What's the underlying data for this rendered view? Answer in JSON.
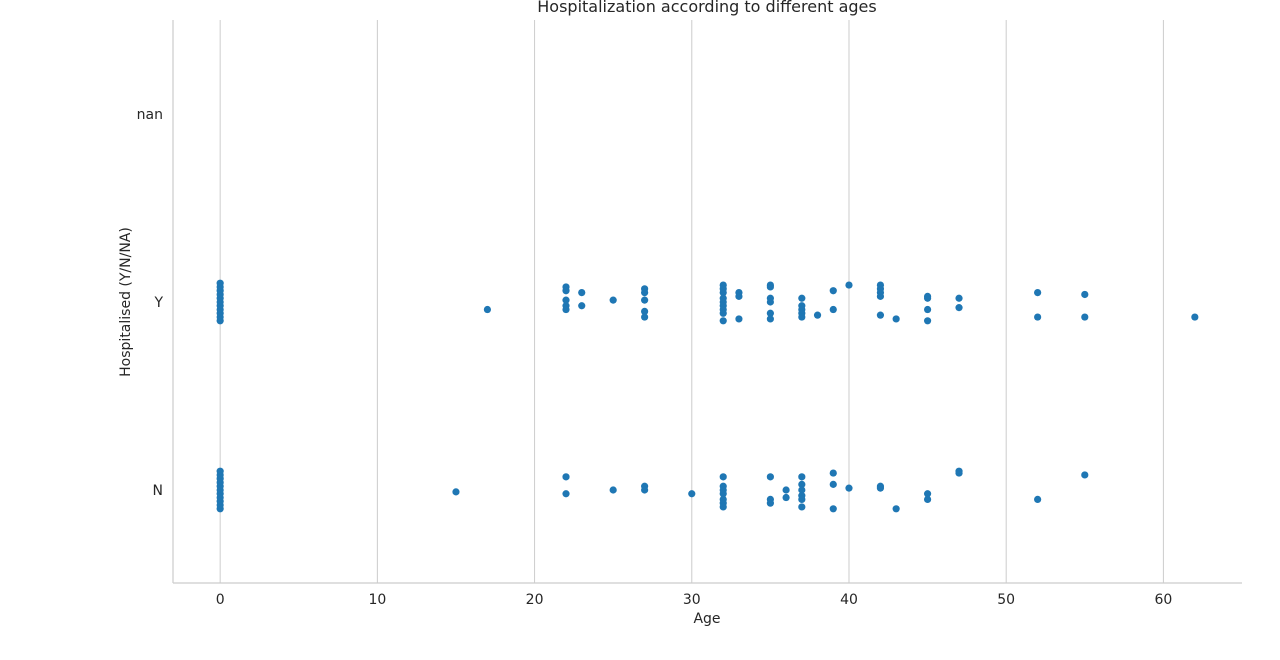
{
  "chart_data": {
    "type": "scatter",
    "title": "Hospitalization according to different ages",
    "xlabel": "Age",
    "ylabel": "Hospitalised (Y/N/NA)",
    "xlim": [
      -3,
      65
    ],
    "xticks": [
      0,
      10,
      20,
      30,
      40,
      50,
      60
    ],
    "categories": [
      "nan",
      "Y",
      "N"
    ],
    "grid": "vertical",
    "marker_color": "#1f77b4",
    "series": [
      {
        "category": "Y",
        "points": [
          {
            "x": 0,
            "jitter": -0.1
          },
          {
            "x": 0,
            "jitter": -0.08
          },
          {
            "x": 0,
            "jitter": -0.06
          },
          {
            "x": 0,
            "jitter": -0.04
          },
          {
            "x": 0,
            "jitter": -0.02
          },
          {
            "x": 0,
            "jitter": 0.0
          },
          {
            "x": 0,
            "jitter": 0.02
          },
          {
            "x": 0,
            "jitter": 0.04
          },
          {
            "x": 0,
            "jitter": 0.06
          },
          {
            "x": 0,
            "jitter": 0.08
          },
          {
            "x": 0,
            "jitter": 0.1
          },
          {
            "x": 17,
            "jitter": -0.04
          },
          {
            "x": 22,
            "jitter": 0.08
          },
          {
            "x": 22,
            "jitter": 0.06
          },
          {
            "x": 22,
            "jitter": 0.01
          },
          {
            "x": 22,
            "jitter": -0.02
          },
          {
            "x": 22,
            "jitter": -0.04
          },
          {
            "x": 23,
            "jitter": 0.05
          },
          {
            "x": 23,
            "jitter": -0.02
          },
          {
            "x": 25,
            "jitter": 0.01
          },
          {
            "x": 27,
            "jitter": 0.07
          },
          {
            "x": 27,
            "jitter": 0.05
          },
          {
            "x": 27,
            "jitter": 0.01
          },
          {
            "x": 27,
            "jitter": -0.05
          },
          {
            "x": 27,
            "jitter": -0.08
          },
          {
            "x": 32,
            "jitter": 0.09
          },
          {
            "x": 32,
            "jitter": 0.07
          },
          {
            "x": 32,
            "jitter": 0.05
          },
          {
            "x": 32,
            "jitter": 0.02
          },
          {
            "x": 32,
            "jitter": 0.0
          },
          {
            "x": 32,
            "jitter": -0.02
          },
          {
            "x": 32,
            "jitter": -0.04
          },
          {
            "x": 32,
            "jitter": -0.06
          },
          {
            "x": 32,
            "jitter": -0.1
          },
          {
            "x": 33,
            "jitter": 0.05
          },
          {
            "x": 33,
            "jitter": 0.03
          },
          {
            "x": 33,
            "jitter": -0.09
          },
          {
            "x": 35,
            "jitter": 0.09
          },
          {
            "x": 35,
            "jitter": 0.08
          },
          {
            "x": 35,
            "jitter": 0.02
          },
          {
            "x": 35,
            "jitter": 0.0
          },
          {
            "x": 35,
            "jitter": -0.06
          },
          {
            "x": 35,
            "jitter": -0.09
          },
          {
            "x": 37,
            "jitter": 0.02
          },
          {
            "x": 37,
            "jitter": -0.02
          },
          {
            "x": 37,
            "jitter": -0.04
          },
          {
            "x": 37,
            "jitter": -0.06
          },
          {
            "x": 37,
            "jitter": -0.08
          },
          {
            "x": 38,
            "jitter": -0.07
          },
          {
            "x": 39,
            "jitter": 0.06
          },
          {
            "x": 39,
            "jitter": -0.04
          },
          {
            "x": 40,
            "jitter": 0.09
          },
          {
            "x": 42,
            "jitter": 0.09
          },
          {
            "x": 42,
            "jitter": 0.07
          },
          {
            "x": 42,
            "jitter": 0.05
          },
          {
            "x": 42,
            "jitter": 0.03
          },
          {
            "x": 42,
            "jitter": -0.07
          },
          {
            "x": 43,
            "jitter": -0.09
          },
          {
            "x": 45,
            "jitter": 0.03
          },
          {
            "x": 45,
            "jitter": 0.02
          },
          {
            "x": 45,
            "jitter": -0.04
          },
          {
            "x": 45,
            "jitter": -0.1
          },
          {
            "x": 47,
            "jitter": 0.02
          },
          {
            "x": 47,
            "jitter": -0.03
          },
          {
            "x": 52,
            "jitter": 0.05
          },
          {
            "x": 52,
            "jitter": -0.08
          },
          {
            "x": 55,
            "jitter": 0.04
          },
          {
            "x": 55,
            "jitter": -0.08
          },
          {
            "x": 62,
            "jitter": -0.08
          }
        ]
      },
      {
        "category": "N",
        "points": [
          {
            "x": 0,
            "jitter": -0.1
          },
          {
            "x": 0,
            "jitter": -0.08
          },
          {
            "x": 0,
            "jitter": -0.06
          },
          {
            "x": 0,
            "jitter": -0.04
          },
          {
            "x": 0,
            "jitter": -0.02
          },
          {
            "x": 0,
            "jitter": 0.0
          },
          {
            "x": 0,
            "jitter": 0.02
          },
          {
            "x": 0,
            "jitter": 0.04
          },
          {
            "x": 0,
            "jitter": 0.06
          },
          {
            "x": 0,
            "jitter": 0.08
          },
          {
            "x": 0,
            "jitter": 0.1
          },
          {
            "x": 15,
            "jitter": -0.01
          },
          {
            "x": 22,
            "jitter": 0.07
          },
          {
            "x": 22,
            "jitter": -0.02
          },
          {
            "x": 25,
            "jitter": 0.0
          },
          {
            "x": 27,
            "jitter": 0.02
          },
          {
            "x": 27,
            "jitter": 0.0
          },
          {
            "x": 30,
            "jitter": -0.02
          },
          {
            "x": 32,
            "jitter": 0.07
          },
          {
            "x": 32,
            "jitter": 0.02
          },
          {
            "x": 32,
            "jitter": 0.0
          },
          {
            "x": 32,
            "jitter": -0.02
          },
          {
            "x": 32,
            "jitter": -0.05
          },
          {
            "x": 32,
            "jitter": -0.07
          },
          {
            "x": 32,
            "jitter": -0.09
          },
          {
            "x": 35,
            "jitter": 0.07
          },
          {
            "x": 35,
            "jitter": -0.05
          },
          {
            "x": 35,
            "jitter": -0.07
          },
          {
            "x": 36,
            "jitter": 0.0
          },
          {
            "x": 36,
            "jitter": -0.04
          },
          {
            "x": 37,
            "jitter": 0.07
          },
          {
            "x": 37,
            "jitter": 0.03
          },
          {
            "x": 37,
            "jitter": 0.0
          },
          {
            "x": 37,
            "jitter": -0.03
          },
          {
            "x": 37,
            "jitter": -0.05
          },
          {
            "x": 37,
            "jitter": -0.09
          },
          {
            "x": 39,
            "jitter": 0.09
          },
          {
            "x": 39,
            "jitter": 0.03
          },
          {
            "x": 39,
            "jitter": -0.1
          },
          {
            "x": 40,
            "jitter": 0.01
          },
          {
            "x": 42,
            "jitter": 0.02
          },
          {
            "x": 42,
            "jitter": 0.01
          },
          {
            "x": 43,
            "jitter": -0.1
          },
          {
            "x": 45,
            "jitter": -0.02
          },
          {
            "x": 45,
            "jitter": -0.05
          },
          {
            "x": 47,
            "jitter": 0.1
          },
          {
            "x": 47,
            "jitter": 0.09
          },
          {
            "x": 52,
            "jitter": -0.05
          },
          {
            "x": 55,
            "jitter": 0.08
          }
        ]
      }
    ]
  }
}
